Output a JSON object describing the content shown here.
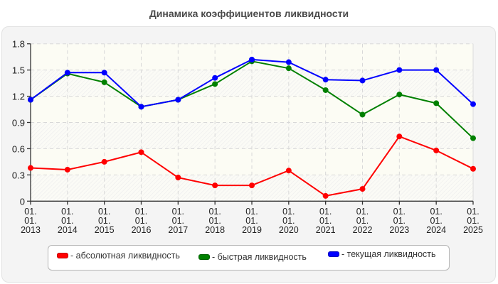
{
  "title": "Динамика коэффициентов ликвидности",
  "legend": [
    {
      "label": "- абсолютная ликвидность",
      "color": "#ff0000"
    },
    {
      "label": "- быстрая ликвидность",
      "color": "#008000"
    },
    {
      "label": "- текущая ликвидность",
      "color": "#0000ff"
    }
  ],
  "chart_data": {
    "type": "line",
    "title": "Динамика коэффициентов ликвидности",
    "xlabel": "",
    "ylabel": "",
    "ylim": [
      0,
      1.8
    ],
    "yticks": [
      "0",
      "0.3",
      "0.6",
      "0.9",
      "1.2",
      "1.5",
      "1.8"
    ],
    "grid": true,
    "legend_position": "bottom",
    "categories": [
      "01.01.2013",
      "01.01.2014",
      "01.01.2015",
      "01.01.2016",
      "01.01.2017",
      "01.01.2018",
      "01.01.2019",
      "01.01.2020",
      "01.01.2021",
      "01.01.2022",
      "01.01.2023",
      "01.01.2024",
      "01.01.2025"
    ],
    "category_lines": [
      [
        "01.",
        "01.",
        "2013"
      ],
      [
        "01.",
        "01.",
        "2014"
      ],
      [
        "01.",
        "01.",
        "2015"
      ],
      [
        "01.",
        "01.",
        "2016"
      ],
      [
        "01.",
        "01.",
        "2017"
      ],
      [
        "01.",
        "01.",
        "2018"
      ],
      [
        "01.",
        "01.",
        "2019"
      ],
      [
        "01.",
        "01.",
        "2020"
      ],
      [
        "01.",
        "01.",
        "2021"
      ],
      [
        "01.",
        "01.",
        "2022"
      ],
      [
        "01.",
        "01.",
        "2023"
      ],
      [
        "01.",
        "01.",
        "2024"
      ],
      [
        "01.",
        "01.",
        "2025"
      ]
    ],
    "series": [
      {
        "name": "абсолютная ликвидность",
        "color": "#ff0000",
        "values": [
          0.38,
          0.36,
          0.45,
          0.56,
          0.27,
          0.18,
          0.18,
          0.35,
          0.06,
          0.14,
          0.74,
          0.58,
          0.37
        ]
      },
      {
        "name": "быстрая ликвидность",
        "color": "#008000",
        "values": [
          1.16,
          1.46,
          1.36,
          1.08,
          1.16,
          1.34,
          1.6,
          1.52,
          1.27,
          0.99,
          1.22,
          1.12,
          0.72
        ]
      },
      {
        "name": "текущая ликвидность",
        "color": "#0000ff",
        "values": [
          1.16,
          1.47,
          1.47,
          1.08,
          1.16,
          1.41,
          1.62,
          1.59,
          1.39,
          1.38,
          1.5,
          1.5,
          1.11
        ]
      }
    ]
  }
}
